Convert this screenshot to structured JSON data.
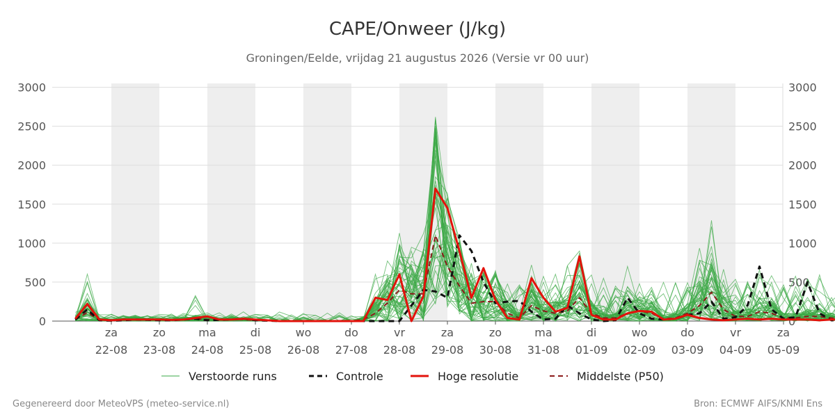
{
  "chart_data": {
    "type": "line",
    "title": "CAPE/Onweer (J/kg)",
    "subtitle": "Groningen/Eelde, vrijdag 21 augustus 2026 (Versie vr 00 uur)",
    "ylim": [
      0,
      3050
    ],
    "yticks": [
      0,
      500,
      1000,
      1500,
      2000,
      2500,
      3000
    ],
    "x_day_range": [
      -1.75,
      13.65
    ],
    "day_ticks": [
      {
        "day": "za",
        "date": "22-08"
      },
      {
        "day": "zo",
        "date": "23-08"
      },
      {
        "day": "ma",
        "date": "24-08"
      },
      {
        "day": "di",
        "date": "25-08"
      },
      {
        "day": "wo",
        "date": "26-08"
      },
      {
        "day": "do",
        "date": "27-08"
      },
      {
        "day": "vr",
        "date": "28-08"
      },
      {
        "day": "za",
        "date": "29-08"
      },
      {
        "day": "zo",
        "date": "30-08"
      },
      {
        "day": "ma",
        "date": "31-08"
      },
      {
        "day": "di",
        "date": "01-09"
      },
      {
        "day": "wo",
        "date": "02-09"
      },
      {
        "day": "do",
        "date": "03-09"
      },
      {
        "day": "vr",
        "date": "04-09"
      },
      {
        "day": "za",
        "date": "05-09"
      }
    ],
    "weekend_shading": [
      [
        0,
        1
      ],
      [
        2,
        3
      ],
      [
        4,
        5
      ],
      [
        6,
        7
      ],
      [
        8,
        9
      ],
      [
        10,
        11
      ],
      [
        12,
        13
      ]
    ],
    "x_step_days": 0.25,
    "x_start_day": -0.75,
    "ensemble_member_count": 50,
    "series": [
      {
        "name": "Controle",
        "values": [
          20,
          150,
          10,
          5,
          10,
          20,
          15,
          10,
          10,
          20,
          30,
          10,
          15,
          20,
          30,
          10,
          5,
          0,
          0,
          0,
          0,
          0,
          0,
          0,
          0,
          0,
          0,
          0,
          200,
          400,
          380,
          300,
          1100,
          900,
          500,
          230,
          250,
          260,
          120,
          20,
          30,
          200,
          100,
          20,
          0,
          10,
          300,
          100,
          30,
          20,
          30,
          80,
          100,
          250,
          30,
          50,
          200,
          700,
          150,
          30,
          50,
          500,
          100,
          10,
          10,
          20,
          20,
          30,
          20,
          10,
          20,
          30,
          350,
          150
        ]
      },
      {
        "name": "Hoge resolutie",
        "values": [
          30,
          220,
          20,
          10,
          20,
          20,
          20,
          20,
          15,
          20,
          40,
          60,
          20,
          20,
          30,
          20,
          10,
          0,
          0,
          0,
          0,
          0,
          0,
          0,
          0,
          300,
          270,
          600,
          0,
          320,
          1700,
          1450,
          900,
          300,
          680,
          270,
          40,
          20,
          550,
          300,
          120,
          170,
          830,
          80,
          20,
          20,
          100,
          130,
          120,
          20,
          30,
          80,
          40,
          20,
          10,
          20,
          30,
          20,
          30,
          20,
          20,
          20,
          10,
          20,
          20,
          20,
          10,
          20,
          30,
          20,
          20,
          30,
          20,
          10
        ]
      },
      {
        "name": "Middelste (P50)",
        "values": [
          20,
          110,
          15,
          10,
          15,
          20,
          15,
          15,
          10,
          20,
          30,
          20,
          15,
          20,
          20,
          10,
          5,
          0,
          0,
          0,
          0,
          0,
          0,
          0,
          20,
          100,
          230,
          400,
          350,
          350,
          1100,
          700,
          450,
          230,
          250,
          250,
          100,
          40,
          200,
          130,
          100,
          130,
          300,
          100,
          40,
          40,
          100,
          130,
          100,
          30,
          40,
          100,
          200,
          370,
          150,
          60,
          60,
          120,
          100,
          40,
          40,
          60,
          60,
          40,
          30,
          30,
          50,
          60,
          40,
          30,
          40,
          60,
          80,
          50
        ]
      }
    ]
  },
  "legend": {
    "ensemble_label": "Verstoorde runs",
    "control_label": "Controle",
    "hires_label": "Hoge resolutie",
    "median_label": "Middelste (P50)"
  },
  "footer": {
    "left": "Gegenereerd door MeteoVPS (meteo-service.nl)",
    "right": "Bron: ECMWF AIFS/KNMI Ens"
  },
  "colors": {
    "ensemble": "#3aa845",
    "control": "#111111",
    "hires": "#e3120b",
    "median": "#8b1a1a",
    "shade": "#eeeeee",
    "grid": "#dddddd"
  }
}
